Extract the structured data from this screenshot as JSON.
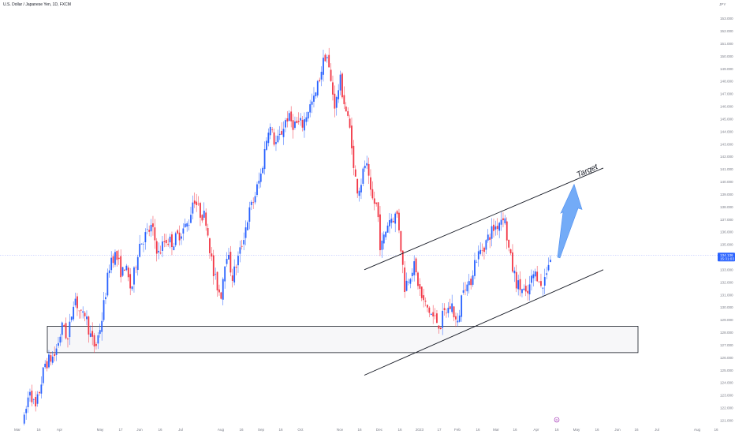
{
  "header": {
    "symbol": "U.S. Dollar / Japanese Yen, 1D, FXCM"
  },
  "price_axis": {
    "currency": "JPY"
  },
  "colors": {
    "up": "#2962ff",
    "down": "#f23645",
    "projection": "#5b9cf6",
    "current_line": "#a9b3ff",
    "tag": "#2962ff"
  },
  "chart_data": {
    "type": "candlestick",
    "title": "U.S. Dollar / Japanese Yen, 1D, FXCM",
    "ylim": [
      120.8,
      153.6
    ],
    "y_ticks": [
      121,
      122,
      123,
      124,
      125,
      126,
      127,
      128,
      129,
      130,
      131,
      132,
      133,
      134,
      135,
      136,
      137,
      138,
      139,
      140,
      141,
      142,
      143,
      144,
      145,
      146,
      147,
      148,
      149,
      150,
      151,
      152,
      153
    ],
    "x_ticks": [
      "Mar",
      "16",
      "Apr",
      "May",
      "17",
      "Jun",
      "16",
      "Jul",
      "Aug",
      "16",
      "Sep",
      "16",
      "Oct",
      "Nov",
      "16",
      "Dec",
      "16",
      "2023",
      "17",
      "Feb",
      "16",
      "Mar",
      "16",
      "Apr",
      "16",
      "May",
      "16",
      "Jun",
      "16",
      "Jul",
      "Aug",
      "16"
    ],
    "current_price": {
      "value": 134.136,
      "label": "134.136",
      "countdown": "15:31:03"
    },
    "support_zone": {
      "top": 128.5,
      "bottom": 126.4
    },
    "channel": {
      "upper": {
        "from": [
          "Nov 16",
          133.0
        ],
        "to": [
          "Apr 26",
          141.1
        ]
      },
      "lower": {
        "from": [
          "Nov 16",
          124.6
        ],
        "to": [
          "Apr 26",
          133.0
        ]
      }
    },
    "projection": {
      "from": [
        "Apr 13",
        134.0
      ],
      "to": [
        "Apr 19",
        139.8
      ],
      "label": "Target"
    },
    "events": [
      {
        "date": "Apr 27",
        "label": "D"
      }
    ],
    "path": [
      [
        "Mar 6",
        121.0
      ],
      [
        "Mar 10",
        123.6
      ],
      [
        "Mar 14",
        121.8
      ],
      [
        "Mar 21",
        125.5
      ],
      [
        "Mar 28",
        126.2
      ],
      [
        "Apr 4",
        128.8
      ],
      [
        "Apr 7",
        127.2
      ],
      [
        "Apr 12",
        131.0
      ],
      [
        "Apr 18",
        129.0
      ],
      [
        "Apr 20",
        129.6
      ],
      [
        "Apr 25",
        127.4
      ],
      [
        "Apr 28",
        126.8
      ],
      [
        "May 2",
        128.9
      ],
      [
        "May 9",
        133.9
      ],
      [
        "May 13",
        134.2
      ],
      [
        "May 18",
        132.6
      ],
      [
        "May 20",
        133.4
      ],
      [
        "May 25",
        131.3
      ],
      [
        "May 31",
        135.0
      ],
      [
        "Jun 10",
        136.4
      ],
      [
        "Jun 15",
        134.2
      ],
      [
        "Jun 20",
        135.4
      ],
      [
        "Jun 26",
        135.2
      ],
      [
        "Jul 1",
        136.0
      ],
      [
        "Jul 7",
        136.7
      ],
      [
        "Jul 11",
        138.9
      ],
      [
        "Jul 15",
        137.6
      ],
      [
        "Jul 20",
        137.2
      ],
      [
        "Jul 26",
        132.6
      ],
      [
        "Aug 1",
        130.9
      ],
      [
        "Aug 5",
        134.6
      ],
      [
        "Aug 10",
        132.4
      ],
      [
        "Aug 16",
        134.6
      ],
      [
        "Aug 22",
        137.4
      ],
      [
        "Aug 26",
        138.6
      ],
      [
        "Sep 1",
        140.6
      ],
      [
        "Sep 7",
        144.6
      ],
      [
        "Sep 12",
        143.0
      ],
      [
        "Sep 15",
        143.4
      ],
      [
        "Sep 21",
        145.2
      ],
      [
        "Sep 26",
        144.6
      ],
      [
        "Oct 3",
        144.6
      ],
      [
        "Oct 7",
        145.8
      ],
      [
        "Oct 12",
        146.6
      ],
      [
        "Oct 17",
        148.9
      ],
      [
        "Oct 21",
        150.4
      ],
      [
        "Oct 24",
        148.2
      ],
      [
        "Oct 28",
        145.9
      ],
      [
        "Nov 1",
        148.2
      ],
      [
        "Nov 4",
        146.5
      ],
      [
        "Nov 10",
        143.5
      ],
      [
        "Nov 11",
        141.2
      ],
      [
        "Nov 15",
        139.3
      ],
      [
        "Nov 18",
        140.2
      ],
      [
        "Nov 21",
        141.7
      ],
      [
        "Nov 25",
        138.7
      ],
      [
        "Nov 30",
        138.0
      ],
      [
        "Dec 2",
        134.5
      ],
      [
        "Dec 8",
        137.0
      ],
      [
        "Dec 15",
        137.4
      ],
      [
        "Dec 19",
        133.0
      ],
      [
        "Dec 20",
        131.6
      ],
      [
        "Dec 27",
        133.4
      ],
      [
        "Jan 3",
        130.6
      ],
      [
        "Jan 12",
        129.2
      ],
      [
        "Jan 18",
        128.6
      ],
      [
        "Jan 20",
        129.4
      ],
      [
        "Jan 27",
        130.2
      ],
      [
        "Feb 1",
        128.4
      ],
      [
        "Feb 6",
        132.1
      ],
      [
        "Feb 10",
        131.5
      ],
      [
        "Feb 15",
        133.8
      ],
      [
        "Feb 22",
        134.9
      ],
      [
        "Feb 28",
        136.1
      ],
      [
        "Mar 2",
        136.6
      ],
      [
        "Mar 7",
        137.5
      ],
      [
        "Mar 10",
        135.0
      ],
      [
        "Mar 13",
        133.3
      ],
      [
        "Mar 17",
        131.8
      ],
      [
        "Mar 22",
        131.3
      ],
      [
        "Mar 24",
        130.7
      ],
      [
        "Mar 29",
        132.6
      ],
      [
        "Apr 3",
        132.6
      ],
      [
        "Apr 5",
        131.2
      ],
      [
        "Apr 10",
        133.6
      ],
      [
        "Apr 13",
        134.1
      ]
    ]
  }
}
